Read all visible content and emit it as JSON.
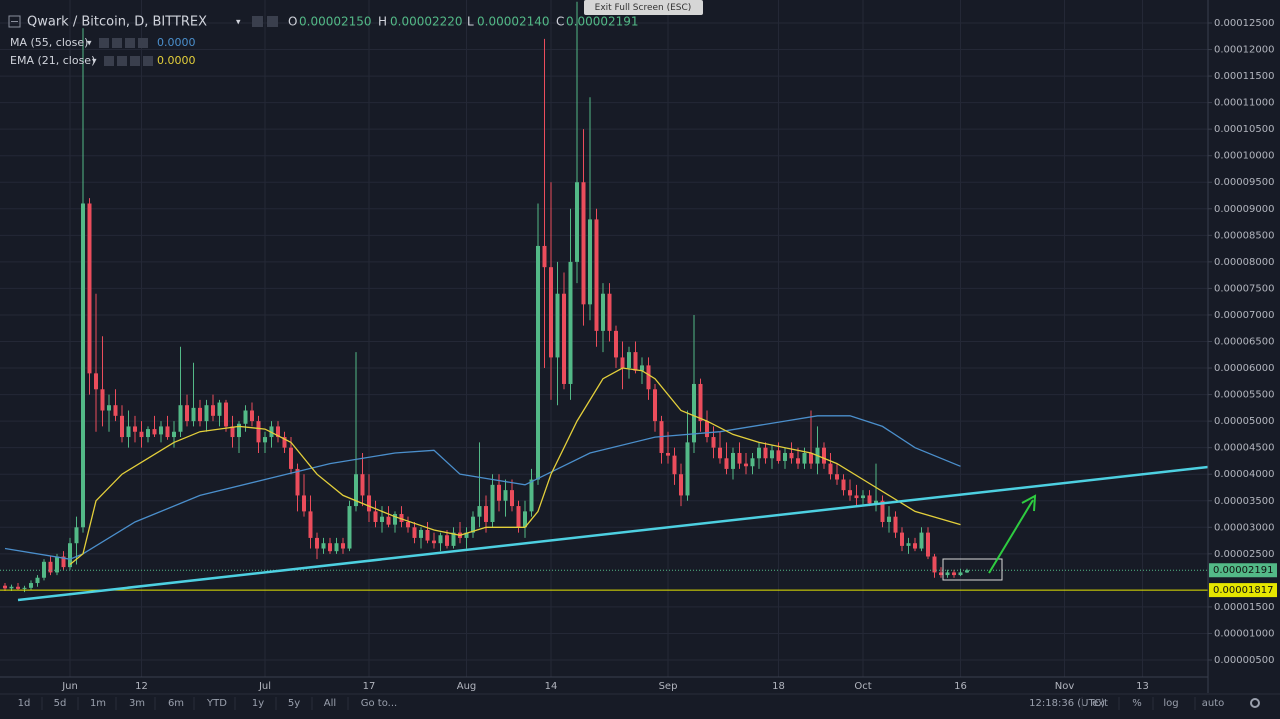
{
  "header": {
    "symbol": "Qwark / Bitcoin, D, BITTREX",
    "ohlc": [
      {
        "key": "O",
        "value": "0.00002150"
      },
      {
        "key": "H",
        "value": "0.00002220"
      },
      {
        "key": "L",
        "value": "0.00002140"
      },
      {
        "key": "C",
        "value": "0.00002191"
      }
    ]
  },
  "overlay_button": "Exit Full Screen (ESC)",
  "toolbar": {
    "ranges": [
      "1d",
      "5d",
      "1m",
      "3m",
      "6m",
      "YTD",
      "1y",
      "5y",
      "All"
    ],
    "goto": "Go to...",
    "time": "12:18:36 (UTC)",
    "options": [
      "ext",
      "%",
      "log",
      "auto"
    ]
  },
  "chart_data": {
    "type": "candlestick",
    "up_color": "#53b987",
    "down_color": "#eb4d5c",
    "grid": true,
    "categories": [
      null,
      null,
      null,
      null,
      null,
      null,
      null,
      null,
      null,
      null,
      "Jun",
      null,
      null,
      null,
      null,
      null,
      null,
      null,
      null,
      null,
      null,
      "12",
      null,
      null,
      null,
      null,
      null,
      null,
      null,
      null,
      null,
      null,
      null,
      null,
      null,
      null,
      null,
      null,
      null,
      null,
      "Jul",
      null,
      null,
      null,
      null,
      null,
      null,
      null,
      null,
      null,
      null,
      null,
      null,
      null,
      null,
      null,
      "17",
      null,
      null,
      null,
      null,
      null,
      null,
      null,
      null,
      null,
      null,
      null,
      null,
      null,
      null,
      "Aug",
      null,
      null,
      null,
      null,
      null,
      null,
      null,
      null,
      null,
      null,
      null,
      null,
      "14",
      null,
      null,
      null,
      null,
      null,
      null,
      null,
      null,
      null,
      null,
      null,
      null,
      null,
      null,
      null,
      null,
      null,
      "Sep",
      null,
      null,
      null,
      null,
      null,
      null,
      null,
      null,
      null,
      null,
      null,
      null,
      null,
      null,
      null,
      null,
      "18",
      null,
      null,
      null,
      null,
      null,
      null,
      null,
      null,
      null,
      null,
      null,
      null,
      "Oct",
      null,
      null,
      null,
      null,
      null,
      null,
      null,
      null,
      null,
      null,
      null,
      null,
      null,
      null,
      "16",
      null,
      null,
      null,
      null,
      null,
      null,
      null,
      null,
      null,
      null,
      null,
      null,
      null,
      null,
      null,
      "Nov",
      null,
      null,
      null,
      null,
      null,
      null,
      null,
      null,
      null,
      null,
      null,
      "13",
      null,
      null,
      null,
      null,
      null,
      null,
      null,
      null,
      null
    ],
    "open": [
      1.9e-05,
      1.85e-05,
      1.88e-05,
      1.84e-05,
      1.86e-05,
      1.95e-05,
      2.05e-05,
      2.35e-05,
      2.15e-05,
      2.45e-05,
      2.25e-05,
      2.7e-05,
      3e-05,
      9.1e-05,
      5.9e-05,
      5.6e-05,
      5.2e-05,
      5.3e-05,
      5.1e-05,
      4.7e-05,
      4.9e-05,
      4.8e-05,
      4.7e-05,
      4.85e-05,
      4.75e-05,
      4.9e-05,
      4.7e-05,
      4.8e-05,
      5.3e-05,
      5e-05,
      5.25e-05,
      5e-05,
      5.3e-05,
      5.1e-05,
      5.35e-05,
      4.9e-05,
      4.7e-05,
      4.95e-05,
      5.2e-05,
      5e-05,
      4.6e-05,
      4.7e-05,
      4.9e-05,
      4.7e-05,
      4.5e-05,
      4.1e-05,
      3.6e-05,
      3.3e-05,
      2.8e-05,
      2.6e-05,
      2.7e-05,
      2.55e-05,
      2.7e-05,
      2.6e-05,
      3.4e-05,
      4e-05,
      3.6e-05,
      3.3e-05,
      3.1e-05,
      3.2e-05,
      3.05e-05,
      3.25e-05,
      3.1e-05,
      3e-05,
      2.8e-05,
      2.95e-05,
      2.75e-05,
      2.7e-05,
      2.85e-05,
      2.65e-05,
      2.9e-05,
      2.8e-05,
      2.9e-05,
      3.2e-05,
      3.4e-05,
      3.1e-05,
      3.8e-05,
      3.5e-05,
      3.7e-05,
      3.4e-05,
      3e-05,
      3.3e-05,
      3.9e-05,
      8.3e-05,
      7.9e-05,
      6.2e-05,
      7.4e-05,
      5.7e-05,
      8e-05,
      9.5e-05,
      7.2e-05,
      8.8e-05,
      6.7e-05,
      7.4e-05,
      6.7e-05,
      6.2e-05,
      6e-05,
      6.3e-05,
      5.95e-05,
      6.05e-05,
      5.6e-05,
      5e-05,
      4.4e-05,
      4.35e-05,
      4e-05,
      3.6e-05,
      4.6e-05,
      5.7e-05,
      5e-05,
      4.7e-05,
      4.5e-05,
      4.3e-05,
      4.1e-05,
      4.4e-05,
      4.2e-05,
      4.15e-05,
      4.3e-05,
      4.5e-05,
      4.3e-05,
      4.45e-05,
      4.25e-05,
      4.4e-05,
      4.3e-05,
      4.2e-05,
      4.4e-05,
      4.2e-05,
      4.5e-05,
      4.2e-05,
      4e-05,
      3.9e-05,
      3.7e-05,
      3.6e-05,
      3.55e-05,
      3.6e-05,
      3.45e-05,
      3.5e-05,
      3.1e-05,
      3.2e-05,
      2.9e-05,
      2.65e-05,
      2.7e-05,
      2.6e-05,
      2.9e-05,
      2.45e-05,
      2.15e-05,
      2.1e-05,
      2.15e-05,
      2.1e-05,
      2.15e-05,
      null,
      null,
      null,
      null,
      null,
      null,
      null,
      null,
      null,
      null,
      null,
      null,
      null,
      null,
      null,
      null,
      null,
      null,
      null,
      null,
      null,
      null,
      null,
      null,
      null,
      null,
      null,
      null,
      null,
      null,
      null,
      null,
      null,
      null,
      null,
      null
    ],
    "high": [
      1.95e-05,
      1.92e-05,
      1.95e-05,
      1.9e-05,
      2e-05,
      2.1e-05,
      2.4e-05,
      2.45e-05,
      2.5e-05,
      2.55e-05,
      2.8e-05,
      3.2e-05,
      0.000124,
      9.2e-05,
      7.4e-05,
      6.6e-05,
      5.5e-05,
      5.6e-05,
      5.3e-05,
      5.2e-05,
      5.1e-05,
      5e-05,
      4.9e-05,
      5.1e-05,
      5e-05,
      5.1e-05,
      5e-05,
      6.4e-05,
      5.5e-05,
      6.1e-05,
      5.4e-05,
      5.4e-05,
      5.5e-05,
      5.4e-05,
      5.4e-05,
      5.1e-05,
      5e-05,
      5.3e-05,
      5.35e-05,
      5.1e-05,
      4.8e-05,
      5e-05,
      5e-05,
      4.8e-05,
      4.7e-05,
      4.2e-05,
      4e-05,
      3.6e-05,
      2.9e-05,
      2.8e-05,
      2.8e-05,
      2.8e-05,
      2.8e-05,
      3.5e-05,
      6.3e-05,
      4.4e-05,
      4e-05,
      3.5e-05,
      3.4e-05,
      3.4e-05,
      3.3e-05,
      3.4e-05,
      3.2e-05,
      3.1e-05,
      3e-05,
      3.1e-05,
      2.9e-05,
      2.9e-05,
      2.95e-05,
      3e-05,
      3.1e-05,
      3e-05,
      3.3e-05,
      4.6e-05,
      3.6e-05,
      4e-05,
      4e-05,
      3.9e-05,
      3.9e-05,
      3.5e-05,
      3.5e-05,
      4.1e-05,
      9.1e-05,
      0.000122,
      9.5e-05,
      8e-05,
      7.8e-05,
      9e-05,
      0.000129,
      0.000105,
      0.000111,
      9e-05,
      7.6e-05,
      7.6e-05,
      6.8e-05,
      6.5e-05,
      6.4e-05,
      6.5e-05,
      6.2e-05,
      6.2e-05,
      5.7e-05,
      5.1e-05,
      4.8e-05,
      4.5e-05,
      4.2e-05,
      5.2e-05,
      7e-05,
      5.8e-05,
      5.2e-05,
      4.9e-05,
      4.8e-05,
      4.6e-05,
      4.5e-05,
      4.6e-05,
      4.4e-05,
      4.4e-05,
      4.6e-05,
      4.6e-05,
      4.55e-05,
      4.6e-05,
      4.5e-05,
      4.6e-05,
      4.5e-05,
      4.5e-05,
      5.2e-05,
      4.9e-05,
      4.6e-05,
      4.4e-05,
      4.2e-05,
      4e-05,
      3.9e-05,
      3.8e-05,
      3.7e-05,
      3.7e-05,
      4.2e-05,
      3.6e-05,
      3.4e-05,
      3.3e-05,
      3e-05,
      2.8e-05,
      2.8e-05,
      3e-05,
      3e-05,
      2.5e-05,
      2.25e-05,
      2.2e-05,
      2.2e-05,
      2.22e-05,
      2.22e-05,
      null,
      null,
      null,
      null,
      null,
      null,
      null,
      null,
      null,
      null,
      null,
      null,
      null,
      null,
      null,
      null,
      null,
      null,
      null,
      null,
      null,
      null,
      null,
      null,
      null,
      null,
      null,
      null,
      null,
      null,
      null,
      null,
      null,
      null,
      null,
      null
    ],
    "low": [
      1.8e-05,
      1.8e-05,
      1.82e-05,
      1.78e-05,
      1.82e-05,
      1.88e-05,
      2e-05,
      2.1e-05,
      2.1e-05,
      2.2e-05,
      2.2e-05,
      2.3e-05,
      2.9e-05,
      5.5e-05,
      4.8e-05,
      4.9e-05,
      4.8e-05,
      5e-05,
      4.6e-05,
      4.5e-05,
      4.6e-05,
      4.5e-05,
      4.6e-05,
      4.7e-05,
      4.6e-05,
      4.65e-05,
      4.5e-05,
      4.7e-05,
      4.9e-05,
      4.9e-05,
      4.9e-05,
      4.8e-05,
      5e-05,
      4.9e-05,
      4.8e-05,
      4.5e-05,
      4.4e-05,
      4.8e-05,
      4.9e-05,
      4.4e-05,
      4.4e-05,
      4.5e-05,
      4.6e-05,
      4.4e-05,
      4e-05,
      3.3e-05,
      3.2e-05,
      2.6e-05,
      2.4e-05,
      2.5e-05,
      2.5e-05,
      2.5e-05,
      2.5e-05,
      2.55e-05,
      3.3e-05,
      3.4e-05,
      3.1e-05,
      3e-05,
      2.9e-05,
      3e-05,
      2.9e-05,
      3e-05,
      2.9e-05,
      2.7e-05,
      2.6e-05,
      2.7e-05,
      2.6e-05,
      2.55e-05,
      2.6e-05,
      2.6e-05,
      2.7e-05,
      2.6e-05,
      2.8e-05,
      3e-05,
      2.9e-05,
      3e-05,
      3.3e-05,
      3.2e-05,
      3.3e-05,
      2.9e-05,
      2.8e-05,
      3.2e-05,
      3.8e-05,
      6e-05,
      5.4e-05,
      5.3e-05,
      5.6e-05,
      5.4e-05,
      7.6e-05,
      6.8e-05,
      6.9e-05,
      6.4e-05,
      6.3e-05,
      6.5e-05,
      6e-05,
      5.6e-05,
      5.8e-05,
      5.9e-05,
      5.7e-05,
      5.4e-05,
      4.8e-05,
      4.2e-05,
      4.2e-05,
      3.8e-05,
      3.4e-05,
      3.5e-05,
      4.4e-05,
      4.8e-05,
      4.6e-05,
      4.3e-05,
      4.2e-05,
      4e-05,
      3.9e-05,
      4.1e-05,
      4e-05,
      4e-05,
      4.1e-05,
      4.2e-05,
      4.1e-05,
      4.2e-05,
      4.1e-05,
      4.2e-05,
      4.1e-05,
      4.1e-05,
      4.1e-05,
      4e-05,
      4.1e-05,
      3.9e-05,
      3.8e-05,
      3.6e-05,
      3.5e-05,
      3.4e-05,
      3.4e-05,
      3.4e-05,
      3.3e-05,
      3e-05,
      2.9e-05,
      2.8e-05,
      2.55e-05,
      2.5e-05,
      2.55e-05,
      2.55e-05,
      2.4e-05,
      2.05e-05,
      2.05e-05,
      2.05e-05,
      2.05e-05,
      2.08e-05,
      2.14e-05,
      null,
      null,
      null,
      null,
      null,
      null,
      null,
      null,
      null,
      null,
      null,
      null,
      null,
      null,
      null,
      null,
      null,
      null,
      null,
      null,
      null,
      null,
      null,
      null,
      null,
      null,
      null,
      null,
      null,
      null,
      null,
      null,
      null,
      null,
      null,
      null
    ],
    "close": [
      1.85e-05,
      1.88e-05,
      1.84e-05,
      1.86e-05,
      1.95e-05,
      2.05e-05,
      2.35e-05,
      2.15e-05,
      2.45e-05,
      2.25e-05,
      2.7e-05,
      3e-05,
      9.1e-05,
      5.9e-05,
      5.6e-05,
      5.2e-05,
      5.3e-05,
      5.1e-05,
      4.7e-05,
      4.9e-05,
      4.8e-05,
      4.7e-05,
      4.85e-05,
      4.75e-05,
      4.9e-05,
      4.7e-05,
      4.8e-05,
      5.3e-05,
      5e-05,
      5.25e-05,
      5e-05,
      5.3e-05,
      5.1e-05,
      5.35e-05,
      4.9e-05,
      4.7e-05,
      4.95e-05,
      5.2e-05,
      5e-05,
      4.6e-05,
      4.7e-05,
      4.9e-05,
      4.7e-05,
      4.5e-05,
      4.1e-05,
      3.6e-05,
      3.3e-05,
      2.8e-05,
      2.6e-05,
      2.7e-05,
      2.55e-05,
      2.7e-05,
      2.6e-05,
      3.4e-05,
      4e-05,
      3.6e-05,
      3.3e-05,
      3.1e-05,
      3.2e-05,
      3.05e-05,
      3.25e-05,
      3.1e-05,
      3e-05,
      2.8e-05,
      2.95e-05,
      2.75e-05,
      2.7e-05,
      2.85e-05,
      2.65e-05,
      2.9e-05,
      2.8e-05,
      2.9e-05,
      3.2e-05,
      3.4e-05,
      3.1e-05,
      3.8e-05,
      3.5e-05,
      3.7e-05,
      3.4e-05,
      3e-05,
      3.3e-05,
      3.9e-05,
      8.3e-05,
      7.9e-05,
      6.2e-05,
      7.4e-05,
      5.7e-05,
      8e-05,
      9.5e-05,
      7.2e-05,
      8.8e-05,
      6.7e-05,
      7.4e-05,
      6.7e-05,
      6.2e-05,
      6e-05,
      6.3e-05,
      5.95e-05,
      6.05e-05,
      5.6e-05,
      5e-05,
      4.4e-05,
      4.35e-05,
      4e-05,
      3.6e-05,
      4.6e-05,
      5.7e-05,
      5e-05,
      4.7e-05,
      4.5e-05,
      4.3e-05,
      4.1e-05,
      4.4e-05,
      4.2e-05,
      4.15e-05,
      4.3e-05,
      4.5e-05,
      4.3e-05,
      4.45e-05,
      4.25e-05,
      4.4e-05,
      4.3e-05,
      4.2e-05,
      4.4e-05,
      4.2e-05,
      4.5e-05,
      4.2e-05,
      4e-05,
      3.9e-05,
      3.7e-05,
      3.6e-05,
      3.55e-05,
      3.6e-05,
      3.45e-05,
      3.5e-05,
      3.1e-05,
      3.2e-05,
      2.9e-05,
      2.65e-05,
      2.7e-05,
      2.6e-05,
      2.9e-05,
      2.45e-05,
      2.15e-05,
      2.1e-05,
      2.15e-05,
      2.1e-05,
      2.15e-05,
      2.191e-05,
      null,
      null,
      null,
      null,
      null,
      null,
      null,
      null,
      null,
      null,
      null,
      null,
      null,
      null,
      null,
      null,
      null,
      null,
      null,
      null,
      null,
      null,
      null,
      null,
      null,
      null,
      null,
      null,
      null,
      null,
      null,
      null,
      null,
      null,
      null,
      null
    ],
    "series": [
      {
        "name": "MA (55, close)",
        "legend_value": "0.0000",
        "color": "#4b8fcc",
        "x": [
          0,
          10,
          12,
          20,
          30,
          40,
          50,
          60,
          66,
          70,
          75,
          80,
          85,
          90,
          100,
          110,
          120,
          125,
          130,
          135,
          140,
          147
        ],
        "values": [
          2.6e-05,
          2.4e-05,
          2.5e-05,
          3.1e-05,
          3.6e-05,
          3.9e-05,
          4.2e-05,
          4.4e-05,
          4.45e-05,
          4e-05,
          3.9e-05,
          3.8e-05,
          4.1e-05,
          4.4e-05,
          4.7e-05,
          4.8e-05,
          5e-05,
          5.1e-05,
          5.1e-05,
          4.9e-05,
          4.5e-05,
          4.15e-05
        ]
      },
      {
        "name": "EMA (21, close)",
        "legend_value": "0.0000",
        "color": "#e3cf3b",
        "x": [
          10,
          12,
          14,
          18,
          22,
          26,
          30,
          36,
          40,
          44,
          48,
          52,
          56,
          60,
          66,
          70,
          74,
          80,
          82,
          84,
          88,
          92,
          95,
          98,
          100,
          104,
          108,
          112,
          116,
          120,
          124,
          128,
          132,
          136,
          140,
          147
        ],
        "values": [
          2.3e-05,
          2.5e-05,
          3.5e-05,
          4e-05,
          4.3e-05,
          4.6e-05,
          4.8e-05,
          4.9e-05,
          4.85e-05,
          4.6e-05,
          4e-05,
          3.6e-05,
          3.4e-05,
          3.2e-05,
          2.95e-05,
          2.85e-05,
          3e-05,
          3e-05,
          3.3e-05,
          4e-05,
          5e-05,
          5.8e-05,
          6e-05,
          5.95e-05,
          5.8e-05,
          5.2e-05,
          5e-05,
          4.75e-05,
          4.6e-05,
          4.5e-05,
          4.4e-05,
          4.2e-05,
          3.9e-05,
          3.6e-05,
          3.3e-05,
          3.05e-05
        ]
      }
    ],
    "price_lines": [
      {
        "value": 2.191e-05,
        "label": "0.00002191",
        "color": "#53b987",
        "dashed": true
      },
      {
        "value": 1.817e-05,
        "label": "0.00001817",
        "color": "#e6e600",
        "dashed": false
      }
    ],
    "ylim": [
      1.8e-06,
      0.00012933
    ],
    "yticks": [
      {
        "value": 5e-06,
        "label": "0.00000500"
      },
      {
        "value": 1e-05,
        "label": "0.00001000"
      },
      {
        "value": 1.5e-05,
        "label": "0.00001500"
      },
      {
        "value": 2.5e-05,
        "label": "0.00002500"
      },
      {
        "value": 3e-05,
        "label": "0.00003000"
      },
      {
        "value": 3.5e-05,
        "label": "0.00003500"
      },
      {
        "value": 4e-05,
        "label": "0.00004000"
      },
      {
        "value": 4.5e-05,
        "label": "0.00004500"
      },
      {
        "value": 5e-05,
        "label": "0.00005000"
      },
      {
        "value": 5.5e-05,
        "label": "0.00005500"
      },
      {
        "value": 6e-05,
        "label": "0.00006000"
      },
      {
        "value": 6.5e-05,
        "label": "0.00006500"
      },
      {
        "value": 7e-05,
        "label": "0.00007000"
      },
      {
        "value": 7.5e-05,
        "label": "0.00007500"
      },
      {
        "value": 8e-05,
        "label": "0.00008000"
      },
      {
        "value": 8.5e-05,
        "label": "0.00008500"
      },
      {
        "value": 9e-05,
        "label": "0.00009000"
      },
      {
        "value": 9.5e-05,
        "label": "0.00009500"
      },
      {
        "value": 0.0001,
        "label": "0.00010000"
      },
      {
        "value": 0.000105,
        "label": "0.00010500"
      },
      {
        "value": 0.00011,
        "label": "0.00011000"
      },
      {
        "value": 0.000115,
        "label": "0.00011500"
      },
      {
        "value": 0.00012,
        "label": "0.00012000"
      },
      {
        "value": 0.000125,
        "label": "0.00012500"
      }
    ]
  }
}
